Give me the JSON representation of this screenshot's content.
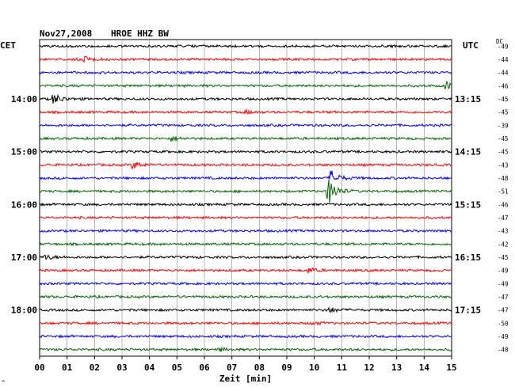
{
  "header": {
    "date": "Nov27,2008",
    "station": "HROE HHZ BW",
    "left_timezone": "CET",
    "right_timezone": "UTC",
    "dc_label": "DC"
  },
  "footer": {
    "xlabel": "Zeit [min]",
    "corner_mark": "^"
  },
  "chart_data": {
    "type": "line",
    "title": "",
    "xlabel": "Zeit [min]",
    "xlim": [
      0,
      15
    ],
    "x_ticks": [
      "00",
      "01",
      "02",
      "03",
      "04",
      "05",
      "06",
      "07",
      "08",
      "09",
      "10",
      "11",
      "12",
      "13",
      "14",
      "15"
    ],
    "trace_count": 24,
    "minutes_per_trace": 15,
    "trace_colors": [
      "#000000",
      "#ff0000",
      "#0000ff",
      "#006600"
    ],
    "left_time_labels": [
      {
        "trace": 4,
        "label": "14:00"
      },
      {
        "trace": 8,
        "label": "15:00"
      },
      {
        "trace": 12,
        "label": "16:00"
      },
      {
        "trace": 16,
        "label": "17:00"
      },
      {
        "trace": 20,
        "label": "18:00"
      }
    ],
    "right_time_labels": [
      {
        "trace": 4,
        "label": "13:15"
      },
      {
        "trace": 8,
        "label": "14:15"
      },
      {
        "trace": 12,
        "label": "15:15"
      },
      {
        "trace": 16,
        "label": "16:15"
      },
      {
        "trace": 20,
        "label": "17:15"
      }
    ],
    "dc_offsets": [
      "-49",
      "-44",
      "-44",
      "-46",
      "-45",
      "-45",
      "-39",
      "-45",
      "-45",
      "-43",
      "-48",
      "-51",
      "-46",
      "-47",
      "-43",
      "-42",
      "-45",
      "-49",
      "-49",
      "-47",
      "-47",
      "-50",
      "-49",
      "-48"
    ],
    "events": [
      {
        "trace": 1,
        "minute": 1.6,
        "amplitude": 4
      },
      {
        "trace": 3,
        "minute": 14.8,
        "amplitude": 5
      },
      {
        "trace": 4,
        "minute": 0.5,
        "amplitude": 7
      },
      {
        "trace": 5,
        "minute": 7.5,
        "amplitude": 2
      },
      {
        "trace": 7,
        "minute": 4.8,
        "amplitude": 3
      },
      {
        "trace": 9,
        "minute": 3.4,
        "amplitude": 5
      },
      {
        "trace": 10,
        "minute": 10.6,
        "amplitude": 10
      },
      {
        "trace": 11,
        "minute": 10.5,
        "amplitude": 18
      },
      {
        "trace": 16,
        "minute": 0.2,
        "amplitude": 3
      },
      {
        "trace": 17,
        "minute": 9.8,
        "amplitude": 3
      },
      {
        "trace": 20,
        "minute": 10.5,
        "amplitude": 4
      },
      {
        "trace": 21,
        "minute": 9.9,
        "amplitude": 2
      },
      {
        "trace": 23,
        "minute": 6.5,
        "amplitude": 2
      }
    ]
  }
}
